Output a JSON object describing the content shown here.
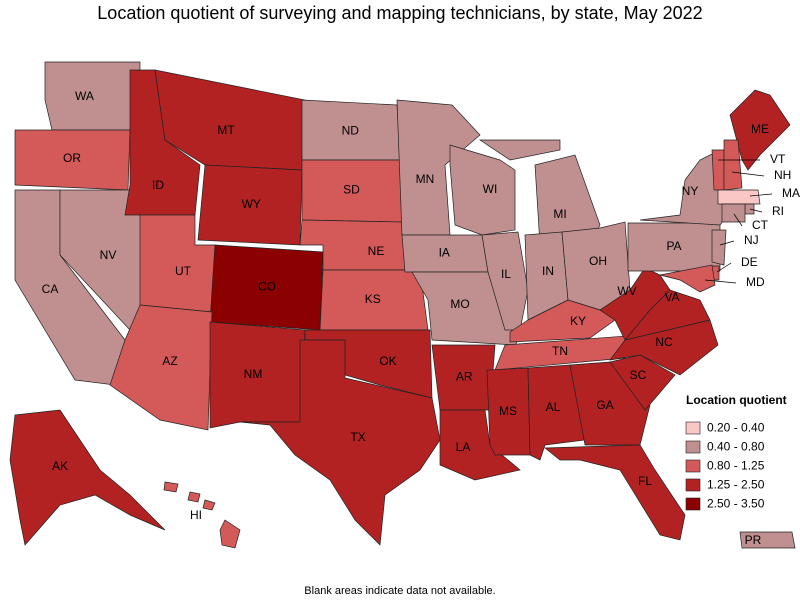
{
  "title": "Location quotient of surveying and mapping technicians, by state, May 2022",
  "legend": {
    "title": "Location quotient",
    "items": [
      {
        "label": "0.20 - 0.40",
        "color": "#fbc6c6"
      },
      {
        "label": "0.40 - 0.80",
        "color": "#c09090"
      },
      {
        "label": "0.80 - 1.25",
        "color": "#d45a5a"
      },
      {
        "label": "1.25 - 2.50",
        "color": "#b22222"
      },
      {
        "label": "2.50 - 3.50",
        "color": "#8b0000"
      }
    ]
  },
  "states": [
    {
      "abbr": "WA",
      "range": "0.40 - 0.80"
    },
    {
      "abbr": "OR",
      "range": "0.80 - 1.25"
    },
    {
      "abbr": "CA",
      "range": "0.40 - 0.80"
    },
    {
      "abbr": "NV",
      "range": "0.40 - 0.80"
    },
    {
      "abbr": "ID",
      "range": "1.25 - 2.50"
    },
    {
      "abbr": "MT",
      "range": "1.25 - 2.50"
    },
    {
      "abbr": "WY",
      "range": "1.25 - 2.50"
    },
    {
      "abbr": "UT",
      "range": "0.80 - 1.25"
    },
    {
      "abbr": "CO",
      "range": "2.50 - 3.50"
    },
    {
      "abbr": "AZ",
      "range": "0.80 - 1.25"
    },
    {
      "abbr": "NM",
      "range": "1.25 - 2.50"
    },
    {
      "abbr": "ND",
      "range": "0.40 - 0.80"
    },
    {
      "abbr": "SD",
      "range": "0.80 - 1.25"
    },
    {
      "abbr": "NE",
      "range": "0.80 - 1.25"
    },
    {
      "abbr": "KS",
      "range": "0.80 - 1.25"
    },
    {
      "abbr": "OK",
      "range": "1.25 - 2.50"
    },
    {
      "abbr": "TX",
      "range": "1.25 - 2.50"
    },
    {
      "abbr": "MN",
      "range": "0.40 - 0.80"
    },
    {
      "abbr": "IA",
      "range": "0.40 - 0.80"
    },
    {
      "abbr": "MO",
      "range": "0.40 - 0.80"
    },
    {
      "abbr": "AR",
      "range": "1.25 - 2.50"
    },
    {
      "abbr": "LA",
      "range": "1.25 - 2.50"
    },
    {
      "abbr": "WI",
      "range": "0.40 - 0.80"
    },
    {
      "abbr": "IL",
      "range": "0.40 - 0.80"
    },
    {
      "abbr": "MI",
      "range": "0.40 - 0.80"
    },
    {
      "abbr": "IN",
      "range": "0.40 - 0.80"
    },
    {
      "abbr": "OH",
      "range": "0.40 - 0.80"
    },
    {
      "abbr": "KY",
      "range": "0.80 - 1.25"
    },
    {
      "abbr": "TN",
      "range": "0.80 - 1.25"
    },
    {
      "abbr": "MS",
      "range": "1.25 - 2.50"
    },
    {
      "abbr": "AL",
      "range": "1.25 - 2.50"
    },
    {
      "abbr": "GA",
      "range": "1.25 - 2.50"
    },
    {
      "abbr": "FL",
      "range": "1.25 - 2.50"
    },
    {
      "abbr": "SC",
      "range": "1.25 - 2.50"
    },
    {
      "abbr": "NC",
      "range": "1.25 - 2.50"
    },
    {
      "abbr": "VA",
      "range": "1.25 - 2.50"
    },
    {
      "abbr": "WV",
      "range": "1.25 - 2.50"
    },
    {
      "abbr": "PA",
      "range": "0.40 - 0.80"
    },
    {
      "abbr": "NY",
      "range": "0.40 - 0.80"
    },
    {
      "abbr": "ME",
      "range": "1.25 - 2.50"
    },
    {
      "abbr": "VT",
      "range": "0.80 - 1.25"
    },
    {
      "abbr": "NH",
      "range": "0.80 - 1.25"
    },
    {
      "abbr": "MA",
      "range": "0.20 - 0.40"
    },
    {
      "abbr": "RI",
      "range": "0.40 - 0.80"
    },
    {
      "abbr": "CT",
      "range": "0.40 - 0.80"
    },
    {
      "abbr": "NJ",
      "range": "0.40 - 0.80"
    },
    {
      "abbr": "DE",
      "range": "0.80 - 1.25"
    },
    {
      "abbr": "MD",
      "range": "0.80 - 1.25"
    },
    {
      "abbr": "AK",
      "range": "1.25 - 2.50"
    },
    {
      "abbr": "HI",
      "range": "0.80 - 1.25"
    },
    {
      "abbr": "PR",
      "range": "0.40 - 0.80"
    }
  ],
  "note": "Blank areas indicate data not available."
}
